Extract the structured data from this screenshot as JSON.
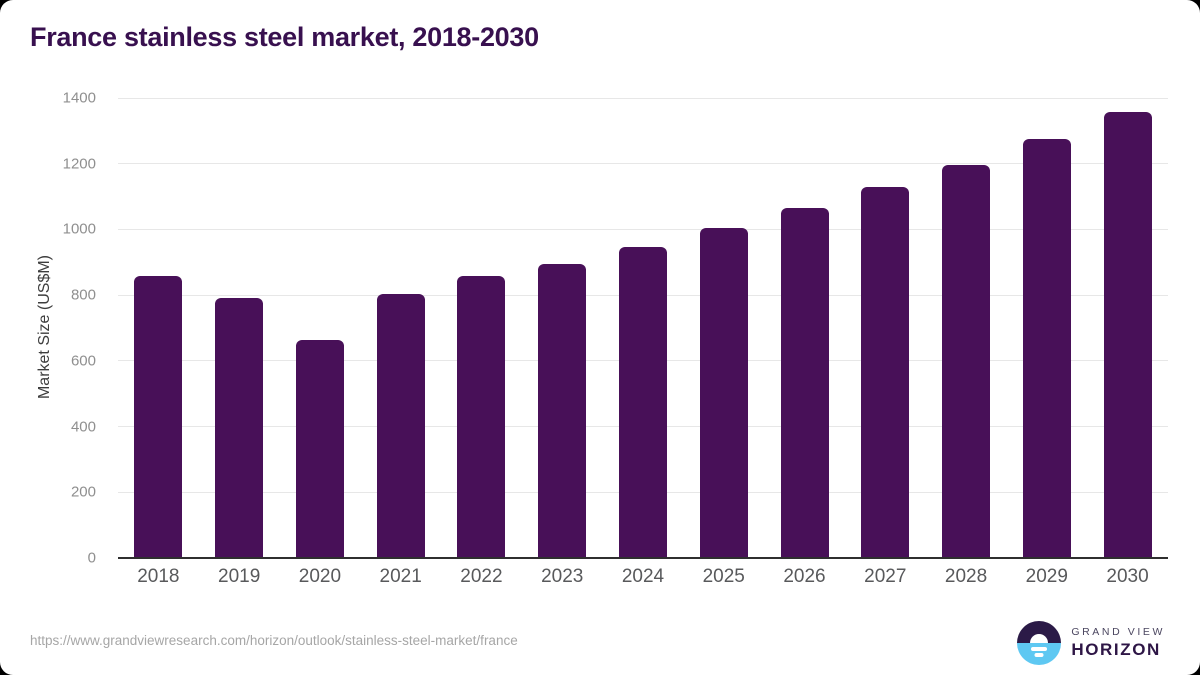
{
  "page": {
    "title": "France stainless steel market, 2018-2030"
  },
  "chart_data": {
    "type": "bar",
    "title": "France stainless steel market, 2018-2030",
    "categories": [
      "2018",
      "2019",
      "2020",
      "2021",
      "2022",
      "2023",
      "2024",
      "2025",
      "2026",
      "2027",
      "2028",
      "2029",
      "2030"
    ],
    "values": [
      858,
      790,
      665,
      805,
      858,
      896,
      947,
      1003,
      1064,
      1130,
      1197,
      1274,
      1356
    ],
    "xlabel": "",
    "ylabel": "Market Size (US$M)",
    "ylim": [
      0,
      1400
    ],
    "yticks": [
      0,
      200,
      400,
      600,
      800,
      1000,
      1200,
      1400
    ],
    "grid": true,
    "legend": "none",
    "bar_color": "#481058"
  },
  "footer": {
    "source_url": "https://www.grandviewresearch.com/horizon/outlook/stainless-steel-market/france",
    "logo": {
      "top_text": "GRAND VIEW",
      "bottom_text": "HORIZON",
      "icon": "horizon-sun-icon"
    }
  },
  "colors": {
    "bar": "#481058",
    "title": "#38104f",
    "gridline": "#e7e7e7",
    "axis_line": "#2f2f2f",
    "y_tick_label": "#8f8f8f",
    "x_tick_label": "#58595b",
    "logo_dark": "#2b1a47",
    "logo_blue": "#5ec8f2"
  }
}
